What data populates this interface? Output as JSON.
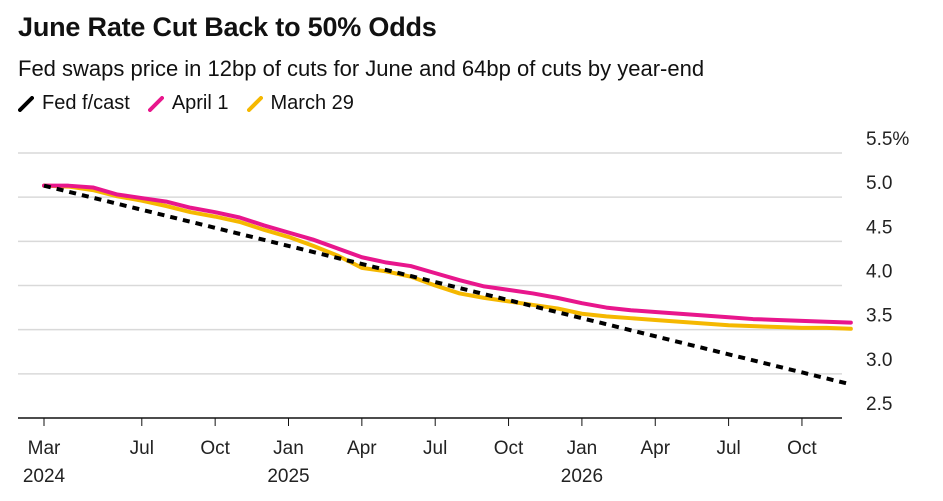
{
  "chart_data": {
    "type": "line",
    "title": "June Rate Cut Back to 50% Odds",
    "subtitle": "Fed swaps price in 12bp of cuts for June and 64bp of cuts by year-end",
    "xlabel": "",
    "ylabel": "",
    "ylim": [
      2.5,
      5.5
    ],
    "xlim": [
      "2024-03",
      "2027-03"
    ],
    "y_ticks": [
      "5.5%",
      "5.0",
      "4.5",
      "4.0",
      "3.5",
      "3.0",
      "2.5"
    ],
    "y_tick_values": [
      5.5,
      5.0,
      4.5,
      4.0,
      3.5,
      3.0,
      2.5
    ],
    "x_ticks": [
      {
        "month": "2024-03",
        "label": "Mar",
        "year": "2024"
      },
      {
        "month": "2024-07",
        "label": "Jul",
        "year": ""
      },
      {
        "month": "2024-10",
        "label": "Oct",
        "year": ""
      },
      {
        "month": "2025-01",
        "label": "Jan",
        "year": "2025"
      },
      {
        "month": "2025-04",
        "label": "Apr",
        "year": ""
      },
      {
        "month": "2025-07",
        "label": "Jul",
        "year": ""
      },
      {
        "month": "2025-10",
        "label": "Oct",
        "year": ""
      },
      {
        "month": "2026-01",
        "label": "Jan",
        "year": "2026"
      },
      {
        "month": "2026-04",
        "label": "Apr",
        "year": ""
      },
      {
        "month": "2026-07",
        "label": "Jul",
        "year": ""
      },
      {
        "month": "2026-10",
        "label": "Oct",
        "year": ""
      }
    ],
    "grid": true,
    "legend_position": "top-left",
    "series": [
      {
        "name": "Fed f/cast",
        "color": "#000000",
        "style": "dashed",
        "x": [
          0,
          33
        ],
        "values": [
          5.13,
          2.88
        ]
      },
      {
        "name": "April 1",
        "color": "#e8168c",
        "style": "solid",
        "x": [
          0,
          1,
          2,
          3,
          4,
          5,
          6,
          7,
          8,
          9,
          10,
          11,
          12,
          13,
          14,
          15,
          16,
          17,
          18,
          19,
          20,
          21,
          22,
          23,
          24,
          25,
          26,
          27,
          28,
          29,
          30,
          31,
          32,
          33
        ],
        "values": [
          5.13,
          5.13,
          5.11,
          5.03,
          4.99,
          4.95,
          4.88,
          4.83,
          4.77,
          4.68,
          4.6,
          4.52,
          4.42,
          4.32,
          4.26,
          4.22,
          4.14,
          4.06,
          3.99,
          3.95,
          3.91,
          3.86,
          3.8,
          3.75,
          3.72,
          3.7,
          3.68,
          3.66,
          3.64,
          3.62,
          3.61,
          3.6,
          3.59,
          3.58
        ]
      },
      {
        "name": "March 29",
        "color": "#f5b800",
        "style": "solid",
        "x": [
          0,
          1,
          2,
          3,
          4,
          5,
          6,
          7,
          8,
          9,
          10,
          11,
          12,
          13,
          14,
          15,
          16,
          17,
          18,
          19,
          20,
          21,
          22,
          23,
          24,
          25,
          26,
          27,
          28,
          29,
          30,
          31,
          32,
          33
        ],
        "values": [
          5.13,
          5.12,
          5.08,
          5.01,
          4.96,
          4.9,
          4.83,
          4.78,
          4.72,
          4.63,
          4.55,
          4.45,
          4.34,
          4.2,
          4.16,
          4.1,
          4.0,
          3.91,
          3.86,
          3.82,
          3.78,
          3.74,
          3.68,
          3.65,
          3.63,
          3.61,
          3.59,
          3.57,
          3.55,
          3.54,
          3.53,
          3.52,
          3.52,
          3.51
        ]
      }
    ]
  }
}
